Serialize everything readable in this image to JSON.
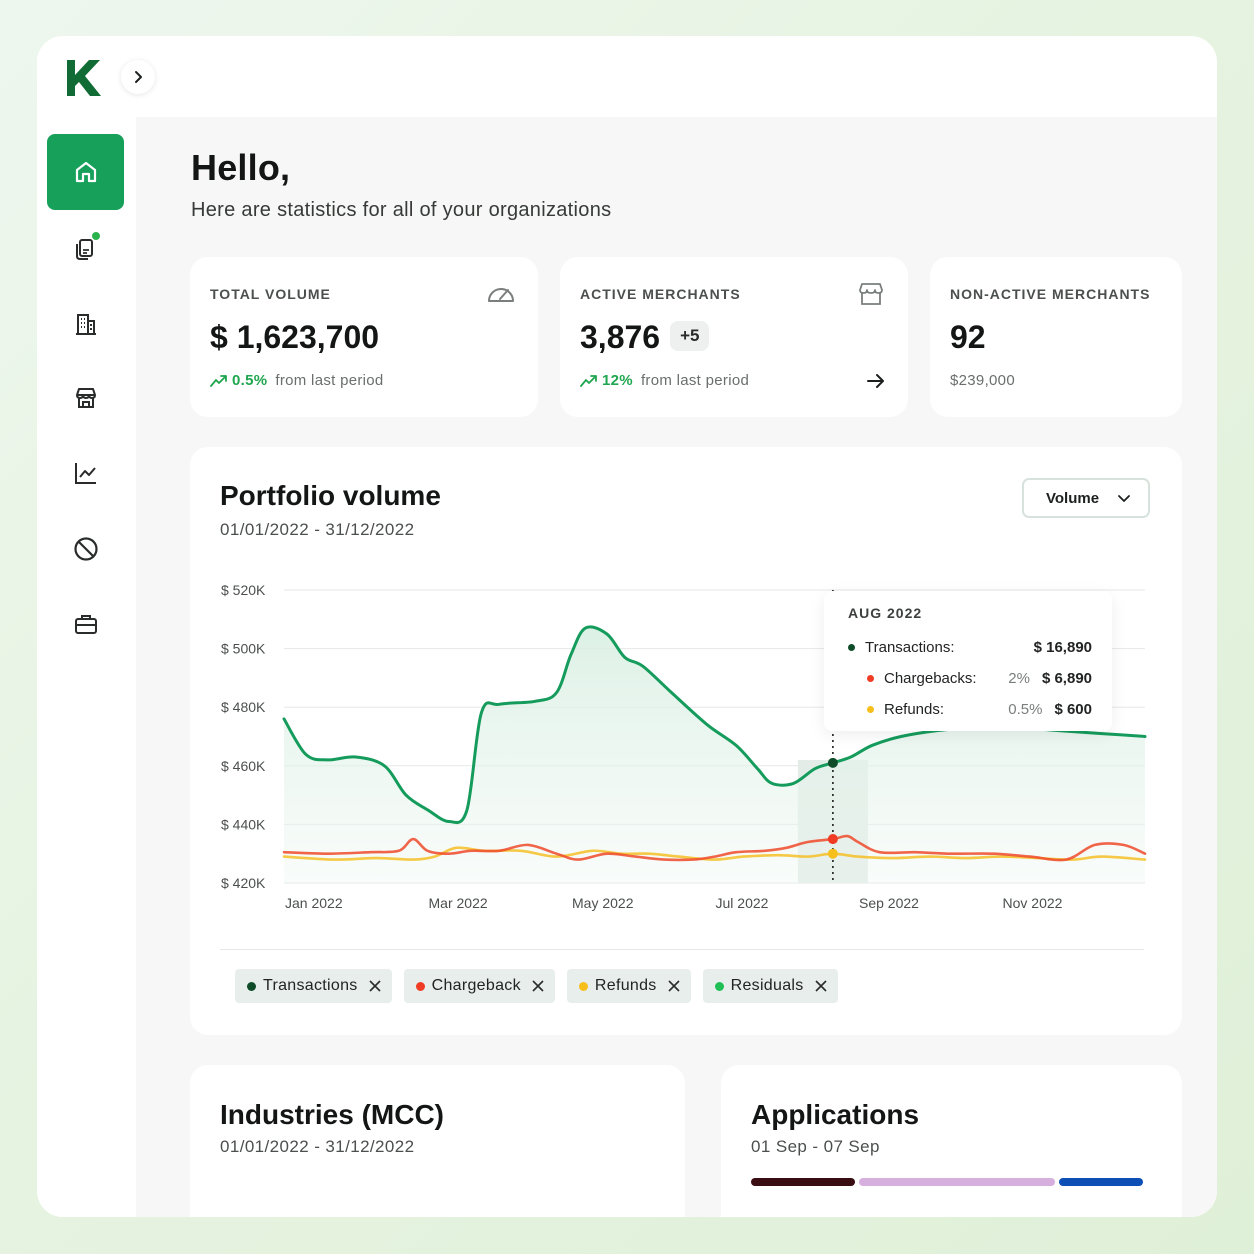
{
  "sidebar": {
    "logo_letter": "K",
    "brand_color": "#17a05a",
    "items": [
      {
        "name": "home",
        "icon": "home-icon",
        "active": true
      },
      {
        "name": "documents",
        "icon": "document-icon",
        "notification": true
      },
      {
        "name": "organizations",
        "icon": "building-icon"
      },
      {
        "name": "merchants",
        "icon": "store-icon"
      },
      {
        "name": "analytics",
        "icon": "line-chart-icon"
      },
      {
        "name": "blocked",
        "icon": "block-icon"
      },
      {
        "name": "portfolio",
        "icon": "briefcase-icon"
      }
    ]
  },
  "header": {
    "title": "Hello,",
    "subtitle": "Here are statistics for all of your organizations"
  },
  "stats": {
    "total_volume": {
      "label": "TOTAL VOLUME",
      "value": "$ 1,623,700",
      "change": "0.5%",
      "change_text": "from last period",
      "icon": "speedometer-icon"
    },
    "active_merchants": {
      "label": "ACTIVE MERCHANTS",
      "value": "3,876",
      "badge": "+5",
      "change": "12%",
      "change_text": "from last period",
      "icon": "store-icon"
    },
    "non_active_merchants": {
      "label": "NON-ACTIVE MERCHANTS",
      "value": "92",
      "sub": "$239,000"
    }
  },
  "portfolio": {
    "title": "Portfolio volume",
    "date_range": "01/01/2022 - 31/12/2022",
    "select_value": "Volume",
    "tooltip": {
      "title": "AUG 2022",
      "rows": [
        {
          "label": "Transactions:",
          "pct": "",
          "value": "$ 16,890",
          "color": "#0f4d2a"
        },
        {
          "label": "Chargebacks:",
          "pct": "2%",
          "value": "$ 6,890",
          "color": "#f03c24"
        },
        {
          "label": "Refunds:",
          "pct": "0.5%",
          "value": "$ 600",
          "color": "#f7bf1b"
        }
      ]
    },
    "chips": [
      {
        "label": "Transactions",
        "color": "#0f4d2a"
      },
      {
        "label": "Chargeback",
        "color": "#f03c24"
      },
      {
        "label": "Refunds",
        "color": "#f7bf1b"
      },
      {
        "label": "Residuals",
        "color": "#1fbf55"
      }
    ]
  },
  "chart_data": {
    "type": "line",
    "x_labels": [
      "Jan 2022",
      "Mar 2022",
      "May 2022",
      "Jul 2022",
      "Sep 2022",
      "Nov 2022"
    ],
    "y_ticks": [
      "$ 420K",
      "$ 440K",
      "$ 460K",
      "$ 480K",
      "$ 500K",
      "$ 520K"
    ],
    "ylim": [
      420,
      520
    ],
    "xlim": [
      0,
      12
    ],
    "highlight_x": 7.65,
    "series": [
      {
        "name": "Transactions",
        "color": "#159c5c",
        "points": [
          [
            0,
            476
          ],
          [
            0.3,
            464
          ],
          [
            0.6,
            462
          ],
          [
            1.0,
            463
          ],
          [
            1.4,
            460
          ],
          [
            1.7,
            450
          ],
          [
            2.0,
            445
          ],
          [
            2.3,
            441
          ],
          [
            2.55,
            445
          ],
          [
            2.75,
            478
          ],
          [
            3.0,
            481
          ],
          [
            3.5,
            482
          ],
          [
            3.8,
            485
          ],
          [
            4.0,
            498
          ],
          [
            4.2,
            507
          ],
          [
            4.5,
            505
          ],
          [
            4.75,
            497
          ],
          [
            5.0,
            494
          ],
          [
            5.4,
            485
          ],
          [
            5.9,
            474
          ],
          [
            6.3,
            467
          ],
          [
            6.6,
            459
          ],
          [
            6.8,
            454
          ],
          [
            7.1,
            454
          ],
          [
            7.4,
            459
          ],
          [
            7.65,
            461
          ],
          [
            7.9,
            463
          ],
          [
            8.2,
            467
          ],
          [
            8.6,
            470
          ],
          [
            9.1,
            472
          ],
          [
            9.6,
            473
          ],
          [
            10.2,
            473
          ],
          [
            10.8,
            472
          ],
          [
            11.4,
            471
          ],
          [
            12,
            470
          ]
        ]
      },
      {
        "name": "Chargeback",
        "color": "#ef4a2c",
        "points": [
          [
            0,
            430.5
          ],
          [
            0.6,
            430
          ],
          [
            1.2,
            430.5
          ],
          [
            1.6,
            431
          ],
          [
            1.8,
            435
          ],
          [
            2.0,
            431
          ],
          [
            2.3,
            430
          ],
          [
            2.6,
            431
          ],
          [
            3.0,
            431
          ],
          [
            3.4,
            433
          ],
          [
            3.8,
            430
          ],
          [
            4.1,
            428
          ],
          [
            4.5,
            430
          ],
          [
            4.9,
            429
          ],
          [
            5.3,
            428
          ],
          [
            5.7,
            428
          ],
          [
            6.0,
            429
          ],
          [
            6.3,
            430.5
          ],
          [
            6.7,
            431
          ],
          [
            7.0,
            432
          ],
          [
            7.3,
            434
          ],
          [
            7.65,
            435
          ],
          [
            7.85,
            436
          ],
          [
            8.0,
            434
          ],
          [
            8.3,
            430.5
          ],
          [
            8.8,
            430.5
          ],
          [
            9.3,
            430
          ],
          [
            9.9,
            430
          ],
          [
            10.4,
            429
          ],
          [
            10.9,
            428
          ],
          [
            11.3,
            433
          ],
          [
            11.7,
            433
          ],
          [
            12,
            430
          ]
        ]
      },
      {
        "name": "Refunds",
        "color": "#f5c026",
        "points": [
          [
            0,
            429
          ],
          [
            0.7,
            428
          ],
          [
            1.3,
            428.5
          ],
          [
            1.8,
            428
          ],
          [
            2.1,
            429
          ],
          [
            2.4,
            432
          ],
          [
            2.8,
            431
          ],
          [
            3.3,
            431
          ],
          [
            3.8,
            429
          ],
          [
            4.3,
            431
          ],
          [
            4.7,
            430
          ],
          [
            5.1,
            430
          ],
          [
            5.5,
            429
          ],
          [
            6.0,
            428
          ],
          [
            6.4,
            429
          ],
          [
            6.9,
            429.5
          ],
          [
            7.3,
            429
          ],
          [
            7.65,
            430
          ],
          [
            8.0,
            429
          ],
          [
            8.5,
            428.5
          ],
          [
            9.0,
            429
          ],
          [
            9.5,
            428.5
          ],
          [
            10.0,
            429
          ],
          [
            10.5,
            428.5
          ],
          [
            11.0,
            428
          ],
          [
            11.4,
            429
          ],
          [
            12,
            428
          ]
        ]
      }
    ]
  },
  "industries": {
    "title": "Industries (MCC)",
    "date_range": "01/01/2022 - 31/12/2022"
  },
  "applications": {
    "title": "Applications",
    "date_range": "01 Sep - 07 Sep",
    "bar_segments": [
      {
        "share": 0.27,
        "color": "#3a0d12"
      },
      {
        "share": 0.51,
        "color": "#d7afde"
      },
      {
        "share": 0.22,
        "color": "#0d4fb5"
      }
    ]
  }
}
